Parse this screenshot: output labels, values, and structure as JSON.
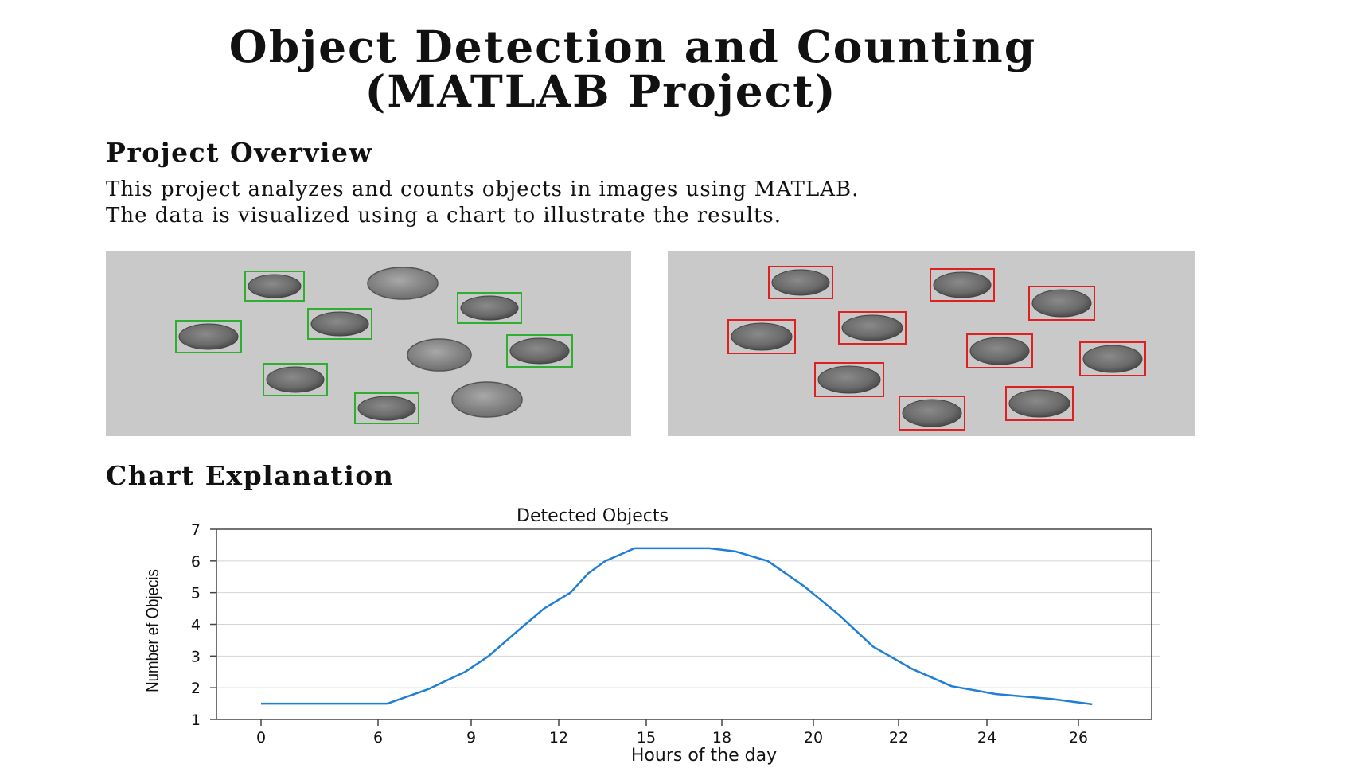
{
  "page": {
    "title_line1": "Object Detection and Counting",
    "title_line2": "(MATLAB Project)",
    "overview_heading": "Project Overview",
    "overview_line1": "This project analyzes and counts objects  in images using MATLAB.",
    "overview_line2": "The data is visualized using a chart to illustrate the results.",
    "chart_heading": "Chart Explanation"
  },
  "images": {
    "left_box_color": "#2fae2f",
    "right_box_color": "#e02020"
  },
  "chart_data": {
    "type": "line",
    "title": "Detected Objects",
    "xlabel": "Hours of the day",
    "ylabel": "Number ef Objecis",
    "x_tick_labels": [
      "0",
      "6",
      "9",
      "12",
      "15",
      "18",
      "20",
      "22",
      "24",
      "26"
    ],
    "y_ticks": [
      1,
      2,
      3,
      4,
      5,
      6,
      7
    ],
    "ylim": [
      1,
      7
    ],
    "grid": "horizontal",
    "line_color": "#1f7fd6",
    "series": [
      {
        "x": [
          0,
          1.3,
          2.5,
          3.5,
          4.5,
          5.5,
          6.3,
          7.6,
          8.8,
          9.6,
          10.6,
          11.5,
          12.4,
          13.0,
          13.6,
          14.1,
          14.6,
          15.5,
          16.5,
          17.5,
          18.3,
          19.0,
          19.8,
          20.6,
          21.4,
          22.3,
          23.2,
          24.2,
          25.4,
          26.3
        ],
        "y": [
          1.5,
          1.5,
          1.5,
          1.5,
          1.5,
          1.5,
          1.5,
          1.95,
          2.5,
          3.0,
          3.8,
          4.5,
          5.0,
          5.6,
          6.0,
          6.2,
          6.4,
          6.4,
          6.4,
          6.4,
          6.3,
          6.0,
          5.2,
          4.3,
          3.3,
          2.6,
          2.05,
          1.8,
          1.65,
          1.48
        ]
      }
    ]
  }
}
